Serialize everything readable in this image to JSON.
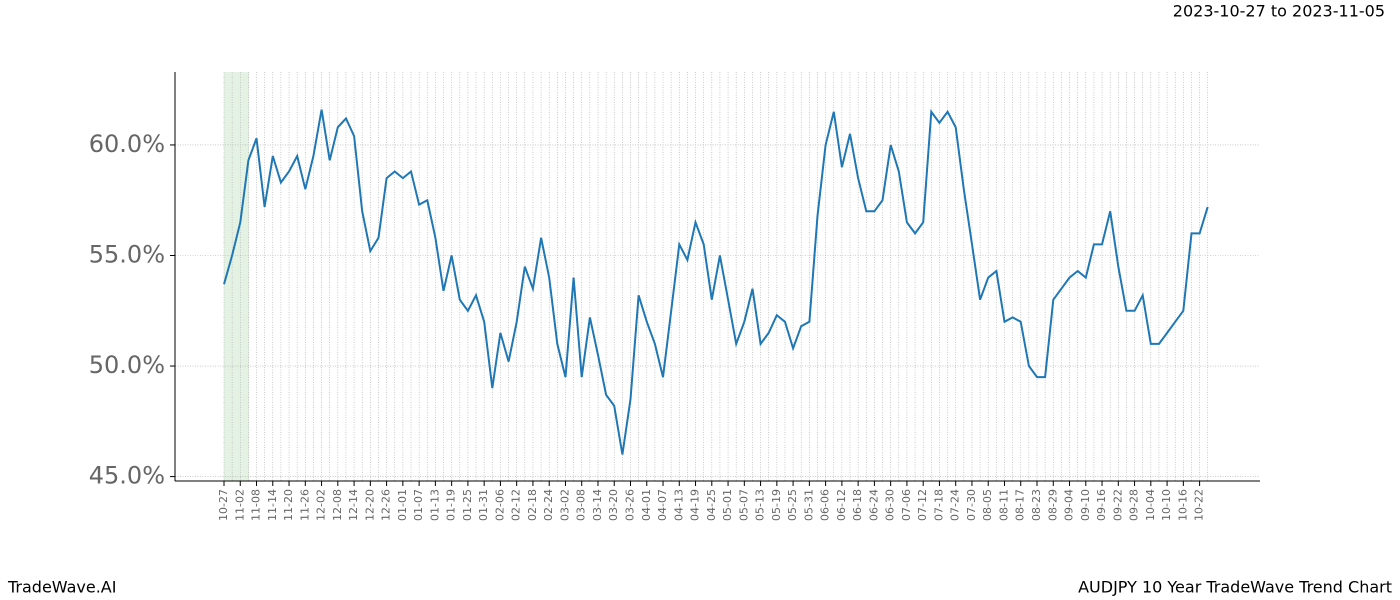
{
  "header": {
    "date_range": "2023-10-27 to 2023-11-05"
  },
  "footer": {
    "brand": "TradeWave.AI",
    "chart_name": "AUDJPY 10 Year TradeWave Trend Chart"
  },
  "chart_data": {
    "type": "line",
    "color": "#1f77b4",
    "grid": true,
    "categories": [
      "10-27",
      null,
      "11-02",
      null,
      "11-08",
      null,
      "11-14",
      null,
      "11-20",
      null,
      "11-26",
      null,
      "12-02",
      null,
      "12-08",
      null,
      "12-14",
      null,
      "12-20",
      null,
      "12-26",
      null,
      "01-01",
      null,
      "01-07",
      null,
      "01-13",
      null,
      "01-19",
      null,
      "01-25",
      null,
      "01-31",
      null,
      "02-06",
      null,
      "02-12",
      null,
      "02-18",
      null,
      "02-24",
      null,
      "03-02",
      null,
      "03-08",
      null,
      "03-14",
      null,
      "03-20",
      null,
      "03-26",
      null,
      "04-01",
      null,
      "04-07",
      null,
      "04-13",
      null,
      "04-19",
      null,
      "04-25",
      null,
      "05-01",
      null,
      "05-07",
      null,
      "05-13",
      null,
      "05-19",
      null,
      "05-25",
      null,
      "05-31",
      null,
      "06-06",
      null,
      "06-12",
      null,
      "06-18",
      null,
      "06-24",
      null,
      "06-30",
      null,
      "07-06",
      null,
      "07-12",
      null,
      "07-18",
      null,
      "07-24",
      null,
      "07-30",
      null,
      "08-05",
      null,
      "08-11",
      null,
      "08-17",
      null,
      "08-23",
      null,
      "08-29",
      null,
      "09-04",
      null,
      "09-10",
      null,
      "09-16",
      null,
      "09-22",
      null,
      "09-28",
      null,
      "10-04",
      null,
      "10-10",
      null,
      "10-16",
      null,
      "10-22",
      null
    ],
    "values": [
      53.7,
      55,
      56.5,
      59.3,
      60.3,
      57.2,
      59.5,
      58.3,
      58.8,
      59.5,
      58,
      59.5,
      61.6,
      59.3,
      60.8,
      61.2,
      60.4,
      57,
      55.2,
      55.8,
      58.5,
      58.8,
      58.5,
      58.8,
      57.3,
      57.5,
      55.8,
      53.4,
      55,
      53,
      52.5,
      53.2,
      52,
      49,
      51.5,
      50.2,
      52,
      54.5,
      53.5,
      55.8,
      54,
      51,
      49.5,
      54,
      49.5,
      52.2,
      50.5,
      48.7,
      48.2,
      46,
      48.5,
      53.2,
      52,
      51,
      49.5,
      52.5,
      55.5,
      54.8,
      56.5,
      55.5,
      53,
      55,
      53,
      51,
      52,
      53.5,
      51,
      51.5,
      52.3,
      52,
      50.8,
      51.8,
      52,
      56.8,
      60,
      61.5,
      59,
      60.5,
      58.5,
      57,
      57,
      57.5,
      60,
      58.8,
      56.5,
      56,
      56.5,
      61.5,
      61,
      61.5,
      60.8,
      58,
      55.5,
      53,
      54,
      54.3,
      52,
      52.2,
      52,
      50,
      49.5,
      49.5,
      53,
      53.5,
      54,
      54.3,
      54,
      55.5,
      55.5,
      57,
      54.5,
      52.5,
      52.5,
      53.2,
      51,
      51,
      51.5,
      52,
      52.5,
      56,
      56,
      57.2
    ],
    "ylim": [
      44.8,
      63.3
    ],
    "yticks": [
      {
        "value": 45,
        "label": "45.0%"
      },
      {
        "value": 50,
        "label": "50.0%"
      },
      {
        "value": 55,
        "label": "55.0%"
      },
      {
        "value": 60,
        "label": "60.0%"
      }
    ]
  }
}
